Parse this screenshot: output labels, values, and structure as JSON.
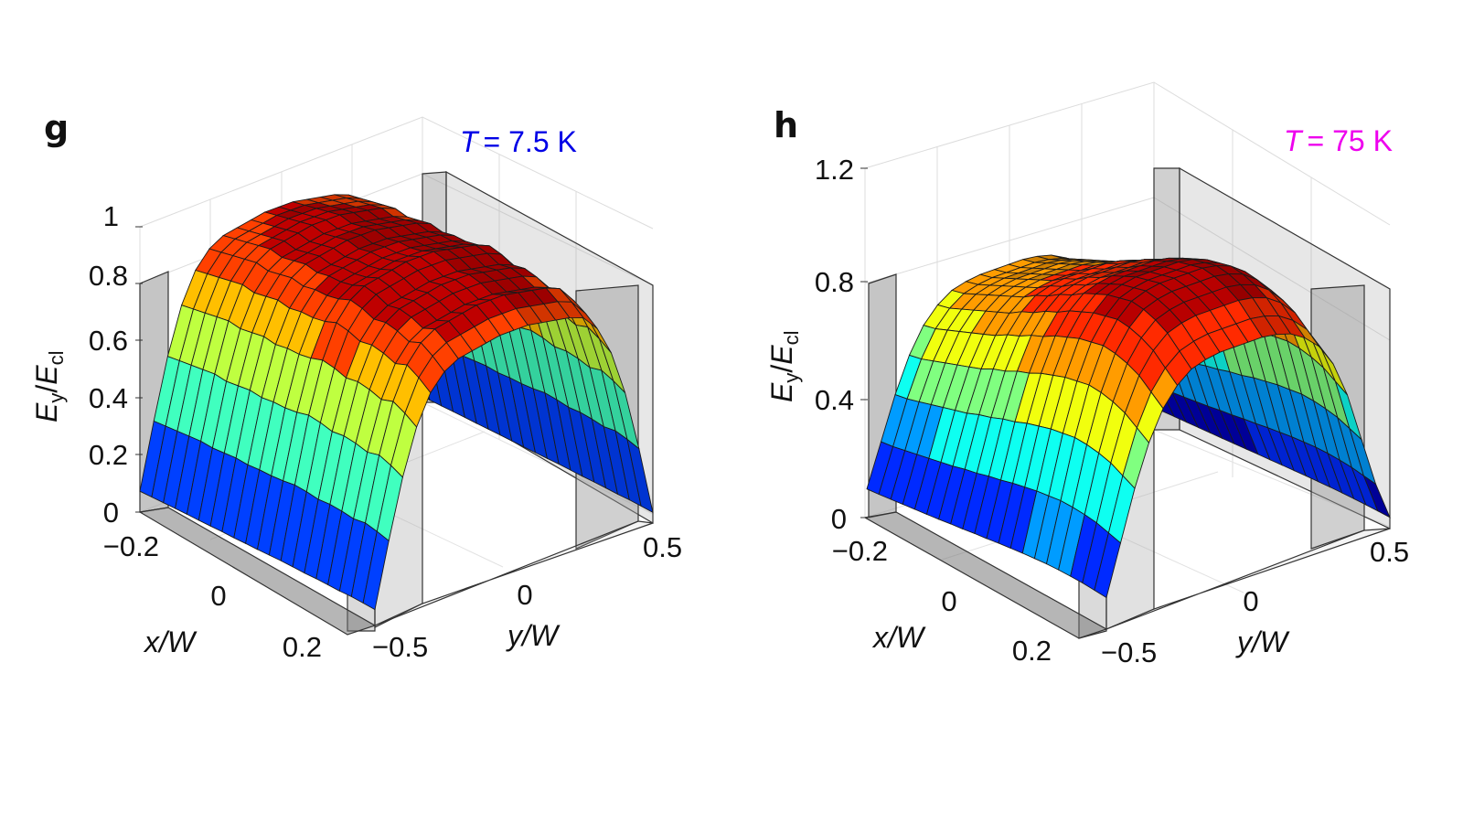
{
  "chart_data": [
    {
      "type": "surface",
      "panel": "g",
      "annotation": {
        "var": "T",
        "value": "= 7.5 K",
        "color": "#0000e6"
      },
      "zlabel": {
        "main": "E",
        "sub": "y",
        "slash": "/",
        "main2": "E",
        "sub2": "cl"
      },
      "xlabel": "x/W",
      "ylabel": "y/W",
      "x_ticks": [
        "−0.2",
        "0",
        "0.2"
      ],
      "y_ticks": [
        "−0.5",
        "0",
        "0.5"
      ],
      "z_ticks": [
        "0",
        "0.2",
        "0.4",
        "0.6",
        "0.8",
        "1"
      ],
      "xlim": [
        -0.25,
        0.25
      ],
      "ylim": [
        -0.5,
        0.5
      ],
      "zlim": [
        0,
        1
      ],
      "grid": true,
      "colormap": "jet",
      "x": [
        -0.25,
        -0.225,
        -0.2,
        -0.175,
        -0.15,
        -0.125,
        -0.1,
        -0.075,
        -0.05,
        -0.025,
        0,
        0.025,
        0.05,
        0.075,
        0.1,
        0.125,
        0.15,
        0.175,
        0.2,
        0.225,
        0.25
      ],
      "y": [
        -0.5,
        -0.45,
        -0.4,
        -0.35,
        -0.3,
        -0.25,
        -0.2,
        -0.15,
        -0.1,
        -0.05,
        0,
        0.05,
        0.1,
        0.15,
        0.2,
        0.25,
        0.3,
        0.35,
        0.4,
        0.45,
        0.5
      ],
      "profile_y": [
        0.06,
        0.3,
        0.52,
        0.69,
        0.8,
        0.86,
        0.89,
        0.9,
        0.91,
        0.92,
        0.92,
        0.92,
        0.91,
        0.9,
        0.89,
        0.87,
        0.81,
        0.7,
        0.53,
        0.3,
        0.04
      ],
      "profile_x": [
        0.93,
        0.97,
        1.0,
        0.98,
        1.0,
        1.01,
        1.0,
        1.02,
        1.03,
        1.01,
        1.0,
        1.0,
        0.99,
        1.0,
        0.99,
        0.98,
        0.99,
        0.98,
        0.97,
        0.96,
        0.95
      ]
    },
    {
      "type": "surface",
      "panel": "h",
      "annotation": {
        "var": "T",
        "value": "= 75 K",
        "color": "#ee00ee"
      },
      "zlabel": {
        "main": "E",
        "sub": "y",
        "slash": "/",
        "main2": "E",
        "sub2": "cl"
      },
      "xlabel": "x/W",
      "ylabel": "y/W",
      "x_ticks": [
        "−0.2",
        "0",
        "0.2"
      ],
      "y_ticks": [
        "−0.5",
        "0",
        "0.5"
      ],
      "z_ticks": [
        "0",
        "0.4",
        "0.8",
        "1.2"
      ],
      "xlim": [
        -0.25,
        0.25
      ],
      "ylim": [
        -0.5,
        0.5
      ],
      "zlim": [
        0,
        1.2
      ],
      "grid": true,
      "colormap": "jet",
      "x": [
        -0.25,
        -0.225,
        -0.2,
        -0.175,
        -0.15,
        -0.125,
        -0.1,
        -0.075,
        -0.05,
        -0.025,
        0,
        0.025,
        0.05,
        0.075,
        0.1,
        0.125,
        0.15,
        0.175,
        0.2,
        0.225,
        0.25
      ],
      "y": [
        -0.5,
        -0.45,
        -0.4,
        -0.35,
        -0.3,
        -0.25,
        -0.2,
        -0.15,
        -0.1,
        -0.05,
        0,
        0.05,
        0.1,
        0.15,
        0.2,
        0.25,
        0.3,
        0.35,
        0.4,
        0.45,
        0.5
      ],
      "profile_y": [
        0.14,
        0.36,
        0.58,
        0.76,
        0.89,
        0.97,
        1.02,
        1.04,
        1.05,
        1.05,
        1.05,
        1.05,
        1.04,
        1.02,
        0.98,
        0.92,
        0.82,
        0.66,
        0.44,
        0.22,
        0.05
      ],
      "profile_x": [
        0.93,
        0.98,
        1.03,
        1.06,
        1.08,
        1.09,
        1.08,
        1.07,
        1.05,
        1.03,
        1.0,
        0.98,
        0.95,
        0.93,
        0.9,
        0.88,
        0.86,
        0.84,
        0.82,
        0.8,
        0.79
      ]
    }
  ]
}
